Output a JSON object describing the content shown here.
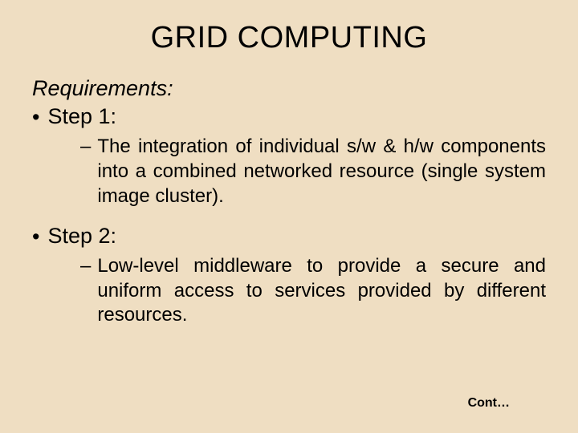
{
  "background_color": "#efdec2",
  "text_color": "#000000",
  "title": {
    "text": "GRID COMPUTING",
    "fontsize": 38,
    "align": "center"
  },
  "subheading": {
    "text": "Requirements:",
    "fontsize": 27,
    "italic": true
  },
  "bullets": {
    "step1": {
      "marker": "•",
      "label": "Step 1:",
      "sub_marker": "–",
      "sub_text": "The integration of individual s/w & h/w components into a combined networked resource (single system image cluster)."
    },
    "step2": {
      "marker": "•",
      "label": "Step 2:",
      "sub_marker": "–",
      "sub_text": "Low-level middleware to provide a secure and uniform access to services provided by different resources."
    }
  },
  "cont_label": "Cont…"
}
